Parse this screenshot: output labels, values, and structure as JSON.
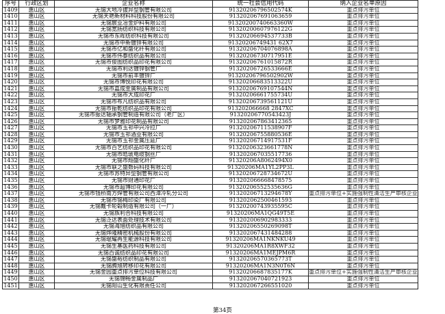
{
  "headers": [
    "序号",
    "行政区划",
    "企业名称",
    "统一社会信用代码",
    "纳入企业名单原因"
  ],
  "rows": [
    [
      "1409",
      "惠山区",
      "无锡大地冷拔异型钢管有限公司",
      "91320206796502574K",
      "重点排污单位"
    ],
    [
      "1410",
      "惠山区",
      "无锡天艳新材料科技股份有限公司",
      "913202067691063659",
      "重点排污单位"
    ],
    [
      "1411",
      "惠山区",
      "无锡宸业冶金炉料有限公司",
      "91320200740663360W",
      "重点排污单位"
    ],
    [
      "1412",
      "惠山区",
      "无锡宽扬纺织科技有限公司",
      "91320200607976122G",
      "重点排污单位"
    ],
    [
      "1413",
      "惠山区",
      "无锡市东晖纺织科技有限公司",
      "91320206694537733B",
      "重点排污单位"
    ],
    [
      "1414",
      "惠山区",
      "无锡市中新镀锌有限公司",
      "91320206749431 62X7",
      "重点排污单位"
    ],
    [
      "1415",
      "惠山区",
      "无锡市亿和盛化纤有限公司",
      "91320206704076898A",
      "重点排污单位"
    ],
    [
      "1416",
      "惠山区",
      "无锡市伟泰纺织品有限公司",
      "91320206730717951E",
      "重点排污单位"
    ],
    [
      "1417",
      "惠山区",
      "无锡市俊图纺织品印花有限公司",
      "91320206761015872R",
      "重点排污单位"
    ],
    [
      "1418",
      "惠山区",
      "无锡市利达镀锌钢管厂",
      "91320206726533666E",
      "重点排污单位"
    ],
    [
      "1419",
      "惠山区",
      "无锡市前丰镀锌厂",
      "91320206796502902W",
      "重点排污单位"
    ],
    [
      "1420",
      "惠山区",
      "无锡市博悦印花有限公司",
      "91320206683513322U",
      "重点排污单位"
    ],
    [
      "1421",
      "惠山区",
      "无锡市嘉成金属制品有限公司",
      "91320206769107544N",
      "重点排污单位"
    ],
    [
      "1422",
      "惠山区",
      "无锡市大成印花厂",
      "91320206661755734U",
      "重点排污单位"
    ],
    [
      "1423",
      "惠山区",
      "无锡市布凡纺织品有限公司",
      "91320206739561121U",
      "重点排污单位"
    ],
    [
      "1424",
      "惠山区",
      "无锡市振乾纺织品印花有限公司",
      "913202066668 2847XC",
      "重点排污单位"
    ],
    [
      "1425",
      "惠山区",
      "无锡市振达轴承钢管制造有限公司（老厂区）",
      "91320206770543423J",
      "重点排污单位"
    ],
    [
      "1426",
      "惠山区",
      "无锡市梦雅印花制品有限公司",
      "913202067863412365",
      "重点排污单位"
    ],
    [
      "1427",
      "惠山区",
      "无锡市玉祁中兴冷拉厂",
      "91320206711538907F",
      "重点排污单位"
    ],
    [
      "1428",
      "惠山区",
      "无锡市玉祁酒业有限公司",
      "91320206755880536E",
      "重点排污单位"
    ],
    [
      "1429",
      "惠山区",
      "无锡市玉祁金属压延厂",
      "91320206714917531F",
      "重点排污单位"
    ],
    [
      "1430",
      "惠山区",
      "无锡市百艺纺织品印花有限公司",
      "91320206323661778N",
      "重点排污单位"
    ],
    [
      "1431",
      "惠山区",
      "无锡市皓琥电缆钢丝厂",
      "913202067035517736",
      "重点排污单位"
    ],
    [
      "1432",
      "惠山区",
      "无锡市翔盛化纤厂",
      "91320206A8062494X0",
      "重点排污单位"
    ],
    [
      "1433",
      "惠山区",
      "无锡市联之盛数码科技有限公司",
      "91320206MA1YL2PP3L",
      "重点排污单位"
    ],
    [
      "1434",
      "惠山区",
      "无锡市苏特异型钢管有限公司",
      "91320206728734672U",
      "重点排污单位"
    ],
    [
      "1435",
      "惠山区",
      "无锡市财通印花厂",
      "913202066668478575",
      "重点排污单位"
    ],
    [
      "1436",
      "惠山区",
      "无锡市超博印花有限公司",
      "91320206552535636G",
      "重点排污单位"
    ],
    [
      "1437",
      "惠山区",
      "无锡市钱桥南方焊管有限公司西漳冷轧分公司",
      "91320206713294678Y",
      "重点排污单位+实施强制性清洁生产审核企业"
    ],
    [
      "1438",
      "惠山区",
      "无锡市锡梅印染厂有限公司",
      "913202062500461593",
      "重点排污单位"
    ],
    [
      "1439",
      "惠山区",
      "无锡戴卡轮毂制造有限公司（一厂）",
      "91320200743935595C",
      "重点排污单位"
    ],
    [
      "1440",
      "惠山区",
      "无锡族利合科技有限公司",
      "91320206MA1QG49T5E",
      "重点排污单位"
    ],
    [
      "1441",
      "惠山区",
      "无锡泛达表面处理技术有限公司",
      "913202006902983333",
      "重点排污单位"
    ],
    [
      "1442",
      "惠山区",
      "无锡海旭纺织品有限公司",
      "91320206550269098T",
      "重点排污单位"
    ],
    [
      "1443",
      "惠山区",
      "无锡烨隆精密机械股份有限公司",
      "913202067431484288",
      "重点排污单位"
    ],
    [
      "1444",
      "惠山区",
      "无锡琨耀再生能源科技有限公司",
      "91320206MA1NKNKU49",
      "重点排污单位"
    ],
    [
      "1445",
      "惠山区",
      "无锡生基医药科技有限公司",
      "91320206MA1R8XWF32",
      "重点排污单位"
    ],
    [
      "1446",
      "惠山区",
      "无锡百诚纺织品印花有限公司",
      "91320206MA1MEJPM6R",
      "重点排污单位"
    ],
    [
      "1447",
      "惠山区",
      "无锡盛裕纺织制品有限公司",
      "91320206570365773T",
      "重点排污单位"
    ],
    [
      "1448",
      "惠山区",
      "无锡腾旭转移印花有限公司",
      "91320206MA1N3N0T6N",
      "重点排污单位"
    ],
    [
      "1449",
      "惠山区",
      "无锡金园重点排污单位科技有限公司",
      "91320206687835177K",
      "重点排污单位+实施强制性清洁生产审核企业"
    ],
    [
      "1450",
      "惠山区",
      "无锡锦畅金属制品厂",
      "913202067040721923",
      "重点排污单位"
    ],
    [
      "1451",
      "惠山区",
      "无锡阳山生化有限责任公司",
      "913202067266551020",
      "重点排污单位"
    ]
  ],
  "footer": "第34页"
}
